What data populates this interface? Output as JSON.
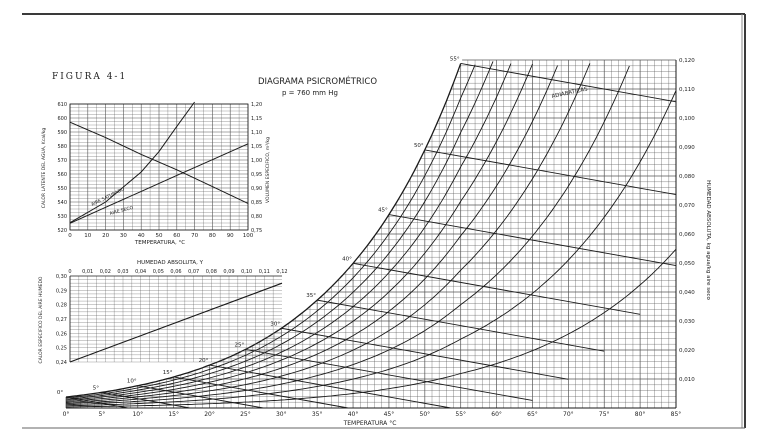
{
  "figure_label": "FIGURA 4-1",
  "colors": {
    "ink": "#1a1a1a",
    "grid": "#555555",
    "paper": "#ffffff",
    "edge": "#3a3a3a"
  },
  "chart_data": [
    {
      "type": "line",
      "title": "DIAGRAMA PSICROMÉTRICO",
      "subtitle": "p = 760 mm Hg",
      "xlabel": "TEMPERATURA °C",
      "ylabel": "HUMEDAD ABSOLUTA, kg agua/kg aire seco",
      "x_ticks": [
        "0°",
        "5°",
        "10°",
        "15°",
        "20°",
        "25°",
        "30°",
        "35°",
        "40°",
        "45°",
        "50°",
        "55°",
        "60°",
        "65°",
        "70°",
        "75°",
        "80°",
        "85°"
      ],
      "y_ticks": [
        "0,120",
        "0,110",
        "0,100",
        "0,090",
        "0,080",
        "0,070",
        "0,060",
        "0,050",
        "0,040",
        "0,030",
        "0,020",
        "0,010"
      ],
      "xlim": [
        0,
        85
      ],
      "ylim": [
        0,
        0.12
      ],
      "grid": true,
      "saturation_curve_x": [
        0,
        5,
        10,
        15,
        20,
        25,
        30,
        35,
        40,
        45,
        50,
        55
      ],
      "saturation_curve_y": [
        0.0038,
        0.0054,
        0.0077,
        0.0107,
        0.0148,
        0.0202,
        0.0275,
        0.0372,
        0.0499,
        0.0667,
        0.089,
        0.1188
      ],
      "curve_labels": [
        "0°",
        "5°",
        "10°",
        "15°",
        "20°",
        "25°",
        "30°",
        "35°",
        "40°",
        "45°",
        "50°",
        "55°"
      ],
      "annotations": [
        "ADIABATICAS"
      ]
    },
    {
      "type": "line",
      "xlabel": "TEMPERATURA, °C",
      "ylabel_left": "CALOR LATENTE DEL AGUA, Kcal/kg",
      "ylabel_right": "VOLUMEN ESPECIFICO, m³/kg",
      "x_ticks": [
        "0",
        "10",
        "20",
        "30",
        "40",
        "50",
        "60",
        "70",
        "80",
        "90",
        "100"
      ],
      "y_left_ticks": [
        "610",
        "600",
        "590",
        "580",
        "570",
        "560",
        "550",
        "540",
        "530",
        "520"
      ],
      "y_right_ticks": [
        "1,20",
        "1,15",
        "1,10",
        "1,05",
        "1,00",
        "0,95",
        "0,90",
        "0,85",
        "0,80",
        "0,75"
      ],
      "xlim": [
        0,
        100
      ],
      "ylim_left": [
        520,
        610
      ],
      "ylim_right": [
        0.75,
        1.2
      ],
      "grid": true,
      "series": [
        {
          "name": "AIRE SATURADO",
          "x": [
            0,
            20,
            40,
            50,
            60,
            70
          ],
          "y": [
            0.776,
            0.85,
            0.957,
            1.03,
            1.12,
            1.25
          ]
        },
        {
          "name": "AIRE SECO",
          "x": [
            0,
            20,
            40,
            60,
            80,
            100
          ],
          "y": [
            0.774,
            0.831,
            0.888,
            0.945,
            1.001,
            1.058
          ]
        },
        {
          "x": [
            0,
            20,
            40,
            60,
            80,
            100
          ],
          "y": [
            597,
            586,
            574,
            563,
            551,
            539
          ]
        }
      ]
    },
    {
      "type": "line",
      "xlabel": "HUMEDAD ABSOLUTA, Y",
      "ylabel": "CALOR ESPECIFICO DEL AIRE HUMEDO",
      "x_ticks": [
        "0",
        "0,01",
        "0,02",
        "0,03",
        "0,04",
        "0,05",
        "0,06",
        "0,07",
        "0,08",
        "0,09",
        "0,10",
        "0,11",
        "0,12"
      ],
      "y_ticks": [
        "0,30",
        "0,29",
        "0,28",
        "0,27",
        "0,26",
        "0,25",
        "0,24"
      ],
      "xlim": [
        0,
        0.12
      ],
      "ylim": [
        0.24,
        0.3
      ],
      "grid": true,
      "series": [
        {
          "x": [
            0,
            0.12
          ],
          "y": [
            0.24,
            0.295
          ]
        }
      ]
    }
  ]
}
